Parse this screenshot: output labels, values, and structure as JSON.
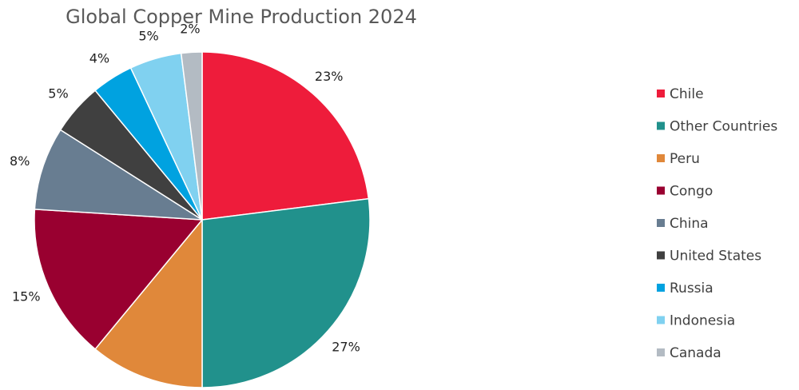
{
  "chart_data": {
    "type": "pie",
    "title": "Global Copper Mine Production 2024",
    "legend_position": "right",
    "slices": [
      {
        "name": "Chile",
        "value": 23,
        "label": "23%",
        "color": "#ee1c3b"
      },
      {
        "name": "Other Countries",
        "value": 27,
        "label": "27%",
        "color": "#21918c"
      },
      {
        "name": "Peru",
        "value": 11,
        "label": "11%",
        "color": "#e0883a"
      },
      {
        "name": "Congo",
        "value": 15,
        "label": "15%",
        "color": "#990030"
      },
      {
        "name": "China",
        "value": 8,
        "label": "8%",
        "color": "#687d91"
      },
      {
        "name": "United States",
        "value": 5,
        "label": "5%",
        "color": "#404040"
      },
      {
        "name": "Russia",
        "value": 4,
        "label": "4%",
        "color": "#00a2e0"
      },
      {
        "name": "Indonesia",
        "value": 5,
        "label": "5%",
        "color": "#80d1f0"
      },
      {
        "name": "Canada",
        "value": 2,
        "label": "2%",
        "color": "#b3bbc3"
      }
    ]
  }
}
